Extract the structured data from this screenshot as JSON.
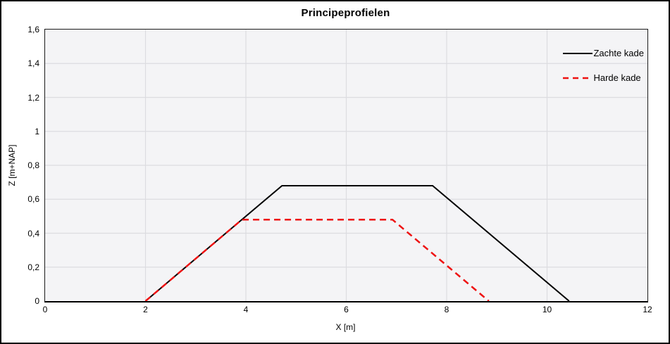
{
  "chart_data": {
    "type": "line",
    "title": "Principeprofielen",
    "xlabel": "X [m]",
    "ylabel": "Z [m+NAP]",
    "xlim": [
      0,
      12
    ],
    "ylim": [
      0,
      1.6
    ],
    "grid": true,
    "legend_position": "top-right-inside",
    "x_ticks": {
      "values": [
        0,
        2,
        4,
        6,
        8,
        10,
        12
      ],
      "labels": [
        "0",
        "2",
        "4",
        "6",
        "8",
        "10",
        "12"
      ]
    },
    "y_ticks": {
      "values": [
        0,
        0.2,
        0.4,
        0.6,
        0.8,
        1.0,
        1.2,
        1.4,
        1.6
      ],
      "labels": [
        "0",
        "0,2",
        "0,4",
        "0,6",
        "0,8",
        "1",
        "1,2",
        "1,4",
        "1,6"
      ]
    },
    "series": [
      {
        "name": "Zachte kade",
        "color": "#000000",
        "line_style": "solid",
        "line_width": 2,
        "points": [
          [
            2,
            0
          ],
          [
            4.72,
            0.68
          ],
          [
            7.72,
            0.68
          ],
          [
            10.44,
            0
          ]
        ]
      },
      {
        "name": "Harde kade",
        "color": "#ee1111",
        "line_style": "dashed",
        "line_width": 2.5,
        "dash_pattern": "9 6",
        "points": [
          [
            2,
            0
          ],
          [
            3.92,
            0.48
          ],
          [
            6.92,
            0.48
          ],
          [
            8.84,
            0
          ]
        ]
      }
    ],
    "colors": {
      "plot_bg": "#f4f4f6",
      "grid": "#dcdce0",
      "axis": "#000000",
      "frame_border": "#000000",
      "text": "#000000"
    }
  }
}
